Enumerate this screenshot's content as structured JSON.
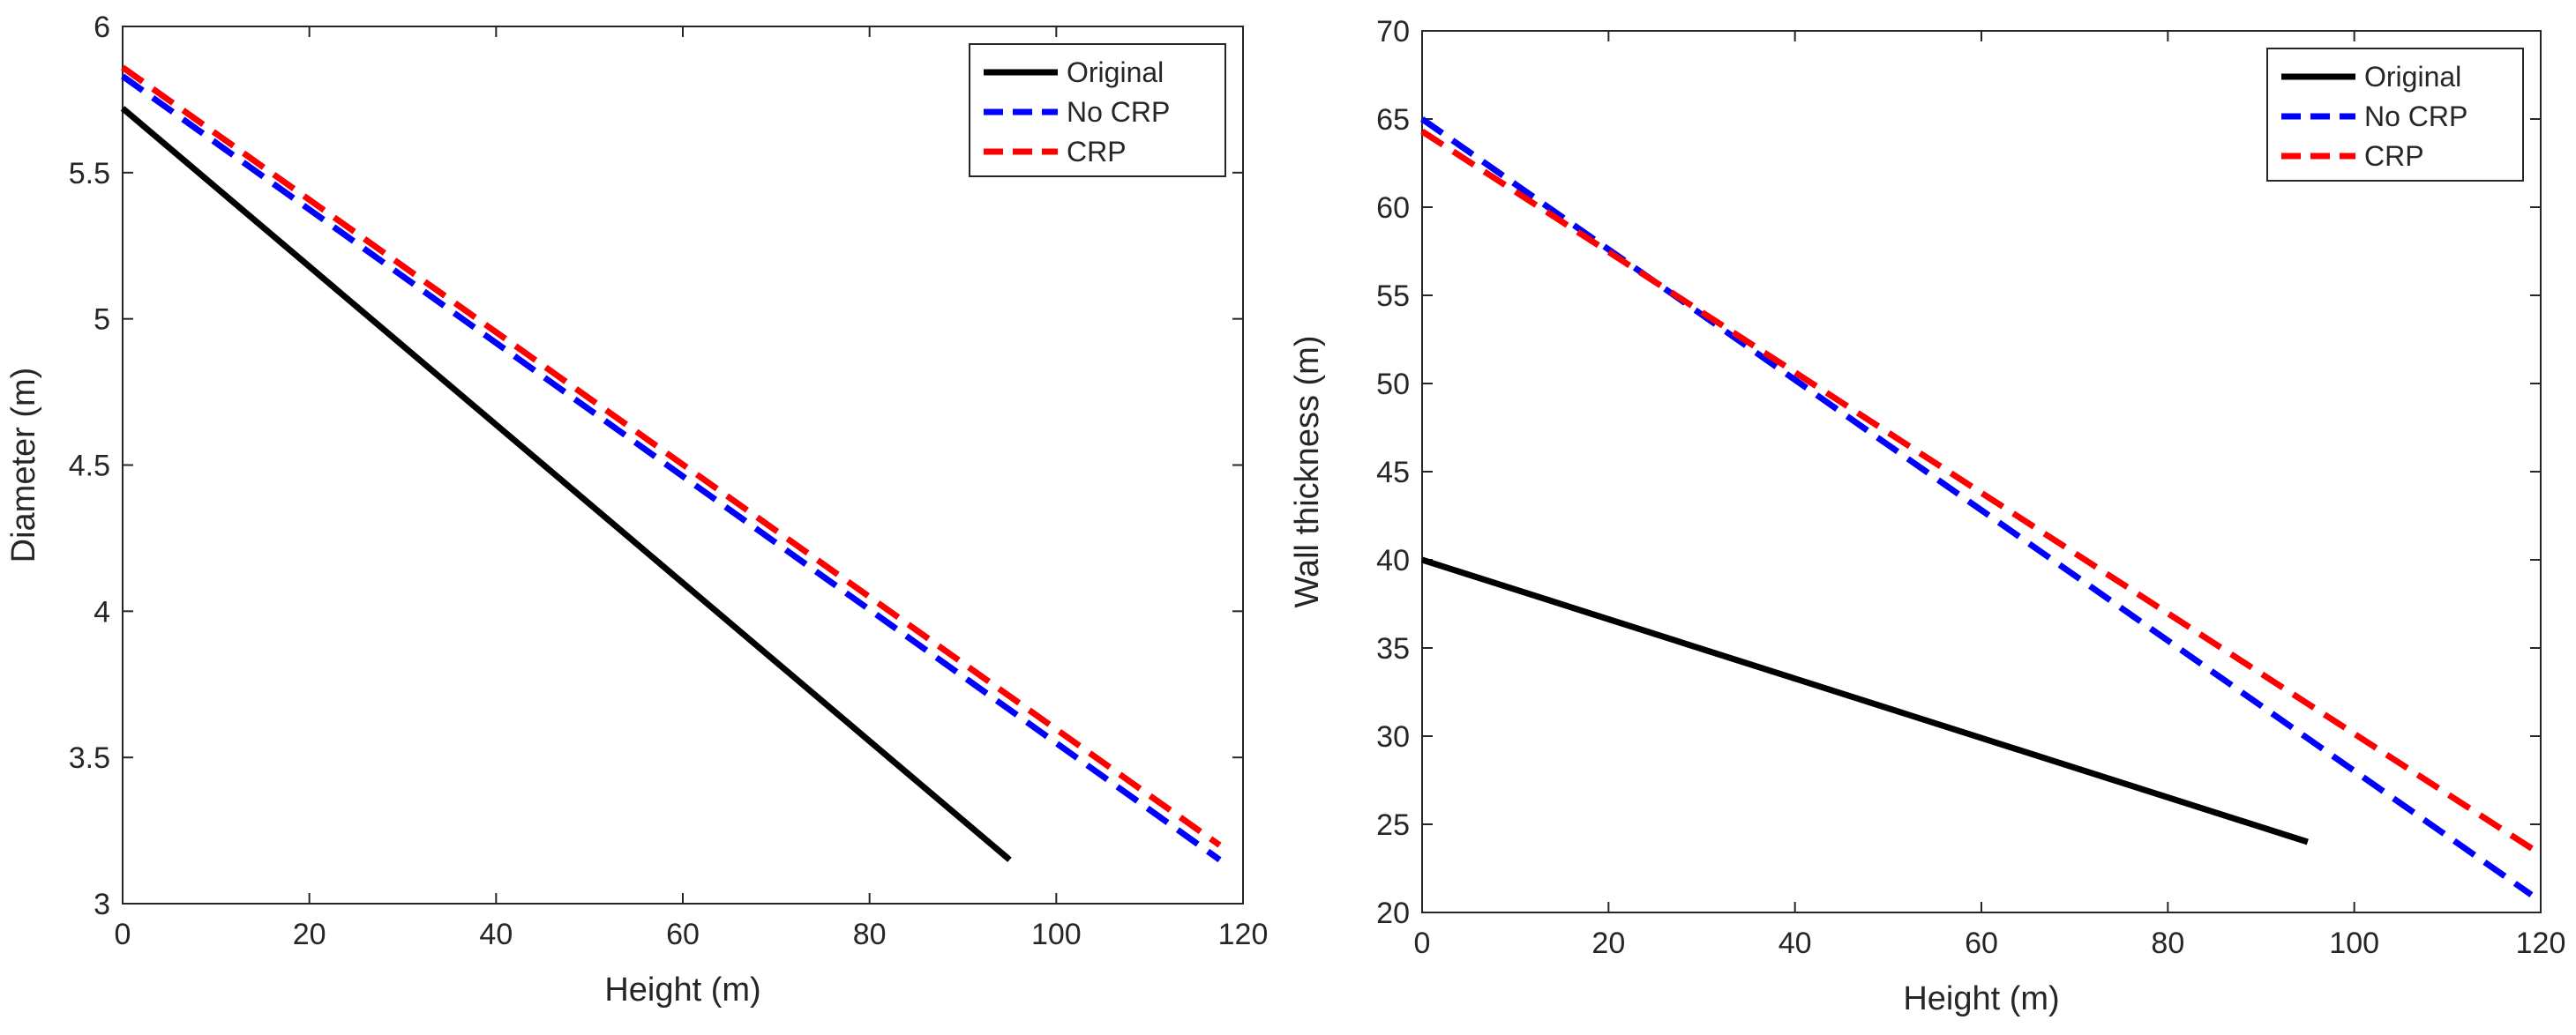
{
  "chart_data": [
    {
      "type": "line",
      "title": "",
      "xlabel": "Height (m)",
      "ylabel": "Diameter (m)",
      "xlim": [
        0,
        120
      ],
      "ylim": [
        3,
        6
      ],
      "xticks": [
        "0",
        "20",
        "40",
        "60",
        "80",
        "100",
        "120"
      ],
      "yticks": [
        "3",
        "3.5",
        "4",
        "4.5",
        "5",
        "5.5",
        "6"
      ],
      "grid": false,
      "legend_position": "top-right",
      "series": [
        {
          "name": "Original",
          "color": "#000000",
          "style": "solid",
          "x": [
            0,
            95
          ],
          "y": [
            5.72,
            3.15
          ]
        },
        {
          "name": "No CRP",
          "color": "#0000ff",
          "style": "dashed",
          "x": [
            0,
            117.5
          ],
          "y": [
            5.83,
            3.15
          ]
        },
        {
          "name": "CRP",
          "color": "#ff0000",
          "style": "dashed",
          "x": [
            0,
            117.5
          ],
          "y": [
            5.86,
            3.2
          ]
        }
      ]
    },
    {
      "type": "line",
      "title": "",
      "xlabel": "Height (m)",
      "ylabel": "Wall thickness (m)",
      "xlim": [
        0,
        120
      ],
      "ylim": [
        20,
        70
      ],
      "xticks": [
        "0",
        "20",
        "40",
        "60",
        "80",
        "100",
        "120"
      ],
      "yticks": [
        "20",
        "25",
        "30",
        "35",
        "40",
        "45",
        "50",
        "55",
        "60",
        "65",
        "70"
      ],
      "grid": false,
      "legend_position": "top-right",
      "series": [
        {
          "name": "Original",
          "color": "#000000",
          "style": "solid",
          "x": [
            0,
            95
          ],
          "y": [
            40,
            24
          ]
        },
        {
          "name": "No CRP",
          "color": "#0000ff",
          "style": "dashed",
          "x": [
            0,
            119
          ],
          "y": [
            65,
            21
          ]
        },
        {
          "name": "CRP",
          "color": "#ff0000",
          "style": "dashed",
          "x": [
            0,
            120
          ],
          "y": [
            64.3,
            23.3
          ]
        }
      ]
    }
  ]
}
